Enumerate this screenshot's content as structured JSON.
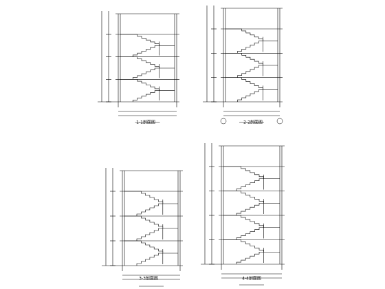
{
  "drawings": [
    {
      "caption": "1-1剖面图"
    },
    {
      "caption": "2-2剖面图"
    },
    {
      "caption": "3-3剖面图"
    },
    {
      "caption": "4-4剖面图"
    }
  ]
}
